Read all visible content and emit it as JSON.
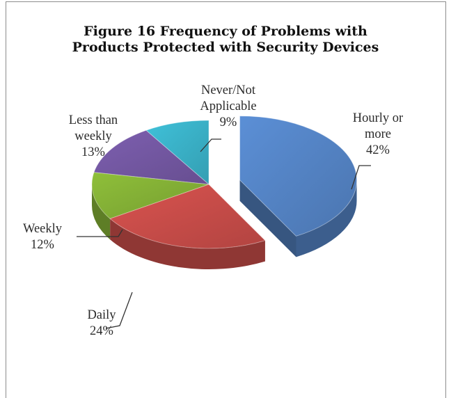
{
  "chart_data": {
    "type": "pie",
    "title_lines": [
      "Figure 16 Frequency of Problems with",
      "Products Protected with Security Devices"
    ],
    "slices": [
      {
        "name": "Hourly or more",
        "label_lines": [
          "Hourly or",
          "more"
        ],
        "value": 42,
        "value_label": "42%",
        "color": "#5b8fd6",
        "exploded": true
      },
      {
        "name": "Daily",
        "label_lines": [
          "Daily"
        ],
        "value": 24,
        "value_label": "24%",
        "color": "#d9534f"
      },
      {
        "name": "Weekly",
        "label_lines": [
          "Weekly"
        ],
        "value": 12,
        "value_label": "12%",
        "color": "#8fbf3a"
      },
      {
        "name": "Less than weekly",
        "label_lines": [
          "Less than",
          "weekly"
        ],
        "value": 13,
        "value_label": "13%",
        "color": "#7d5fb0"
      },
      {
        "name": "Never/Not Applicable",
        "label_lines": [
          "Never/Not",
          "Applicable"
        ],
        "value": 9,
        "value_label": "9%",
        "color": "#3fc1d9"
      }
    ],
    "style": "3d-exploded-pie",
    "legend": "none (data labels on slices)"
  }
}
